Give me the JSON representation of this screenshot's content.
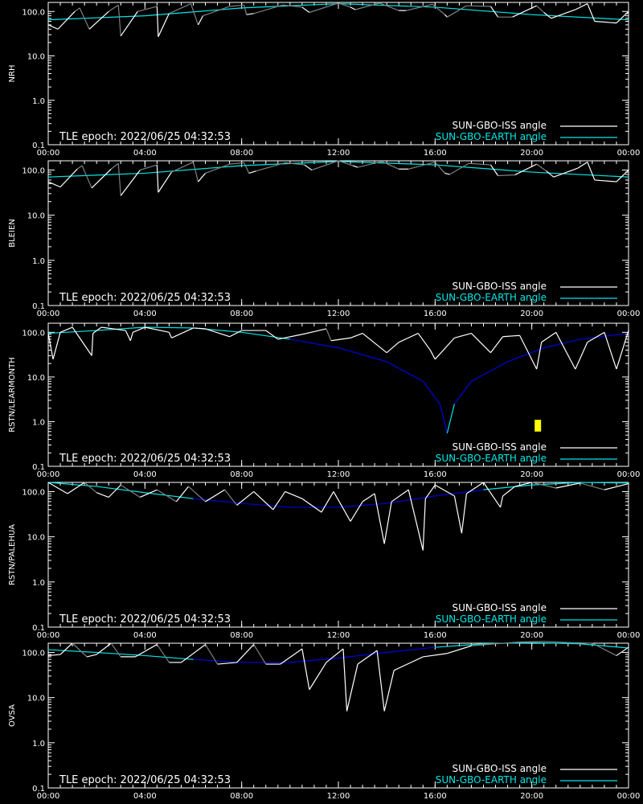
{
  "chart_data": [
    {
      "type": "line",
      "ylabel": "NRH",
      "yscale": "log",
      "ylim": [
        0.1,
        160
      ],
      "y_ticks": [
        "100.0",
        "10.0",
        "1.0",
        "0.1"
      ],
      "x_ticks": [
        "00:00",
        "04:00",
        "08:00",
        "12:00",
        "16:00",
        "20:00",
        "00:00"
      ],
      "xlim_hours": [
        0,
        24
      ],
      "epoch_label": "TLE epoch: 2022/06/25 04:32:53",
      "legend": [
        "SUN-GBO-ISS angle",
        "SUN-GBO-EARTH angle"
      ],
      "colors": {
        "iss_sun": "#ffffff",
        "iss_shadow": "#808080",
        "earth_sun": "#00e6e6",
        "earth_shadow": "#0000e0"
      },
      "earth": {
        "x": [
          0,
          4,
          8,
          12,
          16,
          20,
          24
        ],
        "y": [
          65,
          80,
          120,
          150,
          125,
          85,
          65
        ]
      },
      "iss": {
        "x": [
          0,
          0.4,
          1.1,
          1.3,
          1.7,
          2.5,
          2.9,
          3.0,
          3.7,
          4.5,
          4.55,
          5.0,
          5.9,
          6.2,
          6.4,
          7.5,
          8.1,
          8.2,
          8.5,
          9.7,
          10.5,
          10.8,
          12.0,
          12.5,
          12.7,
          13.7,
          14.5,
          14.8,
          15.9,
          16.4,
          16.5,
          17.3,
          18.3,
          18.6,
          19.2,
          20.2,
          20.5,
          20.8,
          21.8,
          22.3,
          22.6,
          23.5,
          24.0
        ],
        "y": [
          50,
          40,
          100,
          120,
          40,
          100,
          140,
          28,
          100,
          130,
          27,
          90,
          150,
          50,
          80,
          130,
          140,
          85,
          90,
          140,
          125,
          95,
          155,
          125,
          110,
          155,
          105,
          105,
          145,
          85,
          75,
          135,
          130,
          75,
          75,
          135,
          95,
          70,
          110,
          150,
          60,
          55,
          100
        ],
        "sunlit": [
          1,
          1,
          0,
          0,
          1,
          0,
          0,
          1,
          0,
          1,
          1,
          0,
          0,
          1,
          0,
          0,
          0,
          1,
          0,
          0,
          1,
          0,
          0,
          1,
          0,
          0,
          1,
          0,
          0,
          1,
          0,
          0,
          1,
          0,
          1,
          0,
          1,
          1,
          1,
          1,
          1,
          1,
          1
        ]
      }
    },
    {
      "type": "line",
      "ylabel": "BLEIEN",
      "yscale": "log",
      "ylim": [
        0.1,
        160
      ],
      "y_ticks": [
        "100.0",
        "10.0",
        "1.0",
        "0.1"
      ],
      "x_ticks": [
        "00:00",
        "04:00",
        "08:00",
        "12:00",
        "16:00",
        "20:00",
        "00:00"
      ],
      "xlim_hours": [
        0,
        24
      ],
      "epoch_label": "TLE epoch: 2022/06/25 04:32:53",
      "legend": [
        "SUN-GBO-ISS angle",
        "SUN-GBO-EARTH angle"
      ],
      "colors": {
        "iss_sun": "#ffffff",
        "iss_shadow": "#808080",
        "earth_sun": "#00e6e6",
        "earth_shadow": "#0000e0"
      },
      "earth": {
        "x": [
          0,
          4,
          8,
          12,
          16,
          20,
          24
        ],
        "y": [
          70,
          85,
          125,
          155,
          130,
          90,
          70
        ]
      },
      "iss": {
        "x": [
          0,
          0.5,
          1.2,
          1.4,
          1.8,
          2.6,
          2.9,
          3.0,
          3.8,
          4.5,
          4.55,
          5.1,
          6.0,
          6.2,
          6.5,
          7.5,
          8.1,
          8.3,
          8.6,
          9.8,
          10.6,
          10.9,
          12.0,
          12.6,
          12.8,
          13.8,
          14.5,
          14.9,
          16.0,
          16.4,
          16.6,
          17.4,
          18.3,
          18.6,
          19.3,
          20.2,
          20.6,
          20.9,
          21.9,
          22.3,
          22.6,
          23.5,
          24.0
        ],
        "y": [
          55,
          42,
          105,
          125,
          40,
          105,
          140,
          27,
          100,
          130,
          32,
          90,
          150,
          55,
          85,
          135,
          145,
          85,
          95,
          145,
          130,
          100,
          160,
          125,
          115,
          155,
          105,
          105,
          150,
          85,
          80,
          140,
          130,
          75,
          78,
          135,
          95,
          70,
          110,
          150,
          60,
          55,
          100
        ],
        "sunlit": [
          1,
          1,
          0,
          0,
          1,
          0,
          0,
          1,
          0,
          1,
          1,
          0,
          0,
          1,
          0,
          0,
          0,
          1,
          0,
          0,
          1,
          0,
          0,
          1,
          0,
          0,
          1,
          0,
          0,
          1,
          0,
          0,
          1,
          0,
          1,
          0,
          1,
          1,
          1,
          1,
          1,
          1,
          1
        ]
      }
    },
    {
      "type": "line",
      "ylabel": "RSTN/LEARMONTH",
      "yscale": "log",
      "ylim": [
        0.1,
        160
      ],
      "y_ticks": [
        "100.0",
        "10.0",
        "1.0",
        "0.1"
      ],
      "x_ticks": [
        "00:00",
        "04:00",
        "08:00",
        "12:00",
        "16:00",
        "20:00",
        "00:00"
      ],
      "xlim_hours": [
        0,
        24
      ],
      "epoch_label": "TLE epoch: 2022/06/25 04:32:53",
      "legend": [
        "SUN-GBO-ISS angle",
        "SUN-GBO-EARTH angle"
      ],
      "colors": {
        "iss_sun": "#ffffff",
        "iss_shadow": "#808080",
        "earth_sun": "#00e6e6",
        "earth_shadow": "#0000e0",
        "marker": "#ffff00"
      },
      "earth": {
        "x": [
          0,
          2,
          4,
          6,
          8,
          10,
          12,
          14,
          15.5,
          16.2,
          16.5,
          16.8,
          17.5,
          19,
          20.5,
          22,
          24
        ],
        "y": [
          95,
          110,
          130,
          125,
          100,
          70,
          45,
          22,
          8,
          2.5,
          0.55,
          2.5,
          8,
          22,
          45,
          70,
          95
        ],
        "sunlit": [
          1,
          1,
          1,
          1,
          1,
          0,
          0,
          0,
          0,
          0,
          1,
          0,
          0,
          0,
          0,
          0,
          0
        ]
      },
      "iss": {
        "x": [
          0,
          0.2,
          0.5,
          1.0,
          1.8,
          1.85,
          2.2,
          3.2,
          3.4,
          3.5,
          4.0,
          5.0,
          5.1,
          6.0,
          6.5,
          7.5,
          8.0,
          9.0,
          9.5,
          10.5,
          11.5,
          11.7,
          12.5,
          13.0,
          14.0,
          14.5,
          15.3,
          15.8,
          16.0,
          16.8,
          17.5,
          18.3,
          18.8,
          19.5,
          20.2,
          20.4,
          21.0,
          21.8,
          22.3,
          23.0,
          23.5,
          24.0
        ],
        "y": [
          95,
          25,
          100,
          130,
          30,
          95,
          130,
          110,
          65,
          100,
          130,
          100,
          75,
          125,
          120,
          80,
          110,
          110,
          70,
          90,
          120,
          65,
          75,
          95,
          35,
          60,
          95,
          40,
          25,
          75,
          95,
          35,
          80,
          85,
          15,
          60,
          100,
          15,
          60,
          100,
          15,
          110
        ],
        "sunlit": [
          1,
          1,
          1,
          1,
          1,
          1,
          1,
          1,
          1,
          1,
          1,
          1,
          1,
          1,
          1,
          1,
          1,
          1,
          1,
          1,
          0,
          1,
          1,
          1,
          1,
          1,
          1,
          1,
          1,
          1,
          1,
          1,
          1,
          1,
          1,
          1,
          1,
          1,
          1,
          1,
          1,
          1
        ]
      },
      "marker_x": 20.25,
      "marker_y": [
        0.6,
        1.1
      ]
    },
    {
      "type": "line",
      "ylabel": "RSTN/PALEHUA",
      "yscale": "log",
      "ylim": [
        0.1,
        160
      ],
      "y_ticks": [
        "100.0",
        "10.0",
        "1.0",
        "0.1"
      ],
      "x_ticks": [
        "00:00",
        "04:00",
        "08:00",
        "12:00",
        "16:00",
        "20:00",
        "00:00"
      ],
      "xlim_hours": [
        0,
        24
      ],
      "epoch_label": "TLE epoch: 2022/06/25 04:32:53",
      "legend": [
        "SUN-GBO-ISS angle",
        "SUN-GBO-EARTH angle"
      ],
      "colors": {
        "iss_sun": "#ffffff",
        "iss_shadow": "#808080",
        "earth_sun": "#00e6e6",
        "earth_shadow": "#0000e0"
      },
      "earth": {
        "x": [
          0,
          2,
          4,
          6,
          8,
          10,
          12,
          14,
          16,
          18,
          20,
          22,
          24
        ],
        "y": [
          160,
          130,
          95,
          70,
          55,
          45,
          45,
          55,
          80,
          110,
          140,
          160,
          155
        ],
        "sunlit": [
          1,
          1,
          1,
          0,
          0,
          0,
          0,
          0,
          0,
          1,
          1,
          1,
          1
        ]
      },
      "iss": {
        "x": [
          0,
          0.8,
          1.5,
          2.0,
          2.5,
          3.0,
          3.8,
          4.5,
          5.3,
          5.8,
          6.5,
          7.3,
          7.8,
          8.5,
          9.3,
          9.8,
          10.5,
          11.3,
          11.8,
          12.5,
          13.0,
          13.5,
          13.9,
          14.2,
          14.9,
          15.5,
          15.6,
          16.0,
          16.8,
          17.1,
          17.3,
          18.0,
          18.7,
          18.8,
          19.3,
          20.0,
          21.0,
          22.0,
          23.0,
          24.0
        ],
        "y": [
          160,
          90,
          160,
          95,
          75,
          140,
          75,
          110,
          60,
          130,
          60,
          110,
          50,
          100,
          40,
          100,
          70,
          35,
          100,
          22,
          60,
          90,
          7,
          60,
          110,
          5,
          70,
          140,
          80,
          12,
          90,
          160,
          45,
          80,
          130,
          160,
          120,
          155,
          110,
          150
        ],
        "sunlit": [
          1,
          1,
          0,
          1,
          1,
          0,
          1,
          0,
          1,
          0,
          1,
          0,
          1,
          1,
          1,
          1,
          1,
          1,
          1,
          1,
          1,
          1,
          1,
          1,
          1,
          1,
          1,
          1,
          1,
          1,
          1,
          1,
          1,
          1,
          1,
          0,
          1,
          0,
          1,
          0
        ]
      }
    },
    {
      "type": "line",
      "ylabel": "OVSA",
      "yscale": "log",
      "ylim": [
        0.1,
        160
      ],
      "y_ticks": [
        "100.0",
        "10.0",
        "1.0",
        "0.1"
      ],
      "x_ticks": [
        "00:00",
        "04:00",
        "08:00",
        "12:00",
        "16:00",
        "20:00",
        "00:00"
      ],
      "xlim_hours": [
        0,
        24
      ],
      "epoch_label": "TLE epoch: 2022/06/25 04:32:53",
      "legend": [
        "SUN-GBO-ISS angle",
        "SUN-GBO-EARTH angle"
      ],
      "colors": {
        "iss_sun": "#ffffff",
        "iss_shadow": "#808080",
        "earth_sun": "#00e6e6",
        "earth_shadow": "#0000e0"
      },
      "earth": {
        "x": [
          0,
          2,
          4,
          6,
          8,
          10,
          12,
          14,
          16,
          18,
          20,
          22,
          24
        ],
        "y": [
          115,
          100,
          85,
          70,
          60,
          60,
          75,
          100,
          130,
          155,
          165,
          155,
          125
        ],
        "sunlit": [
          1,
          1,
          1,
          0,
          0,
          0,
          0,
          0,
          1,
          1,
          1,
          1,
          1
        ]
      },
      "iss": {
        "x": [
          0,
          0.5,
          1.0,
          1.6,
          2.0,
          2.6,
          3.0,
          3.6,
          4.5,
          5.0,
          5.5,
          6.5,
          7.0,
          7.8,
          8.5,
          9.0,
          9.6,
          10.5,
          10.8,
          11.5,
          12.2,
          12.35,
          12.8,
          13.6,
          13.9,
          14.3,
          15.5,
          16.5,
          17.5,
          18.5,
          19.5,
          20.5,
          21.5,
          22.5,
          23.5,
          24.0
        ],
        "y": [
          85,
          90,
          160,
          80,
          90,
          160,
          80,
          80,
          150,
          60,
          60,
          150,
          55,
          60,
          150,
          55,
          55,
          120,
          15,
          60,
          120,
          5,
          55,
          110,
          5,
          40,
          80,
          95,
          140,
          155,
          170,
          175,
          165,
          160,
          85,
          130
        ],
        "sunlit": [
          1,
          1,
          0,
          1,
          1,
          0,
          1,
          1,
          0,
          1,
          1,
          0,
          1,
          1,
          0,
          1,
          1,
          1,
          1,
          1,
          1,
          1,
          1,
          1,
          1,
          1,
          1,
          1,
          0,
          0,
          0,
          0,
          0,
          0,
          1,
          1
        ]
      }
    }
  ]
}
